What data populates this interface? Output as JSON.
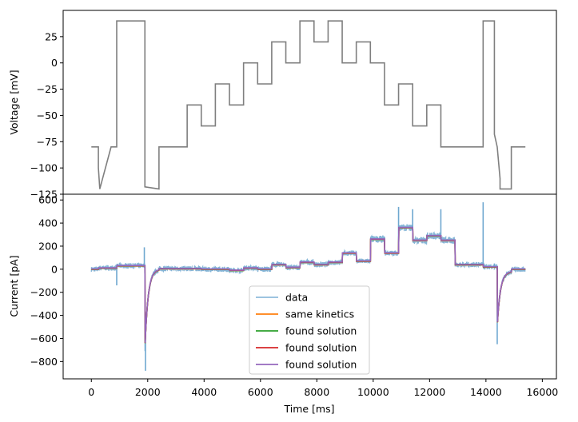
{
  "chart_data": [
    {
      "type": "line",
      "panel": "top",
      "ylabel": "Voltage [mV]",
      "xlabel": "",
      "xlim": [
        -1000,
        16500
      ],
      "ylim": [
        -125,
        50
      ],
      "yticks": [
        -125,
        -100,
        -75,
        -50,
        -25,
        0,
        25
      ],
      "ytick_labels": [
        "−125",
        "−100",
        "−75",
        "−50",
        "−25",
        "0",
        "25"
      ],
      "grid": false,
      "series": [
        {
          "color": "#7f7f7f",
          "x": [
            0,
            250,
            250,
            300,
            700,
            700,
            900,
            900,
            1900,
            1900,
            2400,
            2400,
            3400,
            3400,
            3900,
            3900,
            4400,
            4400,
            4900,
            4900,
            5400,
            5400,
            5900,
            5900,
            6400,
            6400,
            6900,
            6900,
            7400,
            7400,
            7900,
            7900,
            8400,
            8400,
            8900,
            8900,
            9400,
            9400,
            9900,
            9900,
            10400,
            10400,
            10900,
            10900,
            11400,
            11400,
            11900,
            11900,
            12400,
            12400,
            12900,
            12900,
            13900,
            13900,
            14300,
            14300,
            14400,
            14500,
            14500,
            14900,
            14900,
            15400
          ],
          "y": [
            -80,
            -80,
            -100,
            -120,
            -80,
            -80,
            -80,
            40,
            40,
            -118,
            -120,
            -80,
            -80,
            -40,
            -40,
            -60,
            -60,
            -20,
            -20,
            -40,
            -40,
            0,
            0,
            -20,
            -20,
            20,
            20,
            0,
            0,
            40,
            40,
            20,
            20,
            40,
            40,
            0,
            0,
            20,
            20,
            0,
            0,
            -40,
            -40,
            -20,
            -20,
            -60,
            -60,
            -40,
            -40,
            -80,
            -80,
            -80,
            -80,
            40,
            40,
            -68,
            -80,
            -110,
            -120,
            -120,
            -80,
            -80
          ]
        }
      ]
    },
    {
      "type": "line",
      "panel": "bottom",
      "ylabel": "Current [pA]",
      "xlabel": "Time [ms]",
      "xlim": [
        -1000,
        16500
      ],
      "ylim": [
        -950,
        650
      ],
      "yticks": [
        -800,
        -600,
        -400,
        -200,
        0,
        200,
        400,
        600
      ],
      "ytick_labels": [
        "−800",
        "−600",
        "−400",
        "−200",
        "0",
        "200",
        "400",
        "600"
      ],
      "xticks": [
        0,
        2000,
        4000,
        6000,
        8000,
        10000,
        12000,
        14000,
        16000
      ],
      "xtick_labels": [
        "0",
        "2000",
        "4000",
        "6000",
        "8000",
        "10000",
        "12000",
        "14000",
        "16000"
      ],
      "grid": false,
      "legend_position": "lower center",
      "series": [
        {
          "name": "data",
          "color": "#6fa8d0",
          "legend_color": "#8fbcdc"
        },
        {
          "name": "same kinetics",
          "color": "#ff7f0e"
        },
        {
          "name": "found solution",
          "color": "#2ca02c"
        },
        {
          "name": "found solution",
          "color": "#d62728"
        },
        {
          "name": "found solution",
          "color": "#9467bd"
        }
      ],
      "segments": [
        {
          "t0": 0,
          "t1": 250,
          "v": 0
        },
        {
          "t0": 250,
          "t1": 900,
          "v": 10
        },
        {
          "t0": 900,
          "t1": 1900,
          "v": 30
        },
        {
          "t0": 1900,
          "t1": 2400,
          "v": -700,
          "decay_to": 0
        },
        {
          "t0": 2400,
          "t1": 3400,
          "v": 5
        },
        {
          "t0": 3400,
          "t1": 3900,
          "v": 5
        },
        {
          "t0": 3900,
          "t1": 4400,
          "v": 0
        },
        {
          "t0": 4400,
          "t1": 4900,
          "v": 0
        },
        {
          "t0": 4900,
          "t1": 5400,
          "v": -10
        },
        {
          "t0": 5400,
          "t1": 5900,
          "v": 10
        },
        {
          "t0": 5900,
          "t1": 6400,
          "v": 0
        },
        {
          "t0": 6400,
          "t1": 6900,
          "v": 40
        },
        {
          "t0": 6900,
          "t1": 7400,
          "v": 15
        },
        {
          "t0": 7400,
          "t1": 7900,
          "v": 60
        },
        {
          "t0": 7900,
          "t1": 8400,
          "v": 40
        },
        {
          "t0": 8400,
          "t1": 8900,
          "v": 60
        },
        {
          "t0": 8900,
          "t1": 9400,
          "v": 140
        },
        {
          "t0": 9400,
          "t1": 9900,
          "v": 70
        },
        {
          "t0": 9900,
          "t1": 10400,
          "v": 260
        },
        {
          "t0": 10400,
          "t1": 10900,
          "v": 140
        },
        {
          "t0": 10900,
          "t1": 11400,
          "v": 360
        },
        {
          "t0": 11400,
          "t1": 11900,
          "v": 250
        },
        {
          "t0": 11900,
          "t1": 12400,
          "v": 290
        },
        {
          "t0": 12400,
          "t1": 12900,
          "v": 250
        },
        {
          "t0": 12900,
          "t1": 13900,
          "v": 40
        },
        {
          "t0": 13900,
          "t1": 14400,
          "v": 20
        },
        {
          "t0": 14400,
          "t1": 14900,
          "v": -500,
          "decay_to": -20
        },
        {
          "t0": 14900,
          "t1": 15400,
          "v": 0
        }
      ],
      "spikes": [
        {
          "t": 900,
          "v": -140
        },
        {
          "t": 1880,
          "v": 190
        },
        {
          "t": 1920,
          "v": -880
        },
        {
          "t": 10400,
          "v": 280
        },
        {
          "t": 10900,
          "v": 540
        },
        {
          "t": 11400,
          "v": 520
        },
        {
          "t": 11900,
          "v": 300
        },
        {
          "t": 12400,
          "v": 520
        },
        {
          "t": 13900,
          "v": 580
        },
        {
          "t": 14300,
          "v": 50
        },
        {
          "t": 14400,
          "v": -650
        }
      ]
    }
  ]
}
